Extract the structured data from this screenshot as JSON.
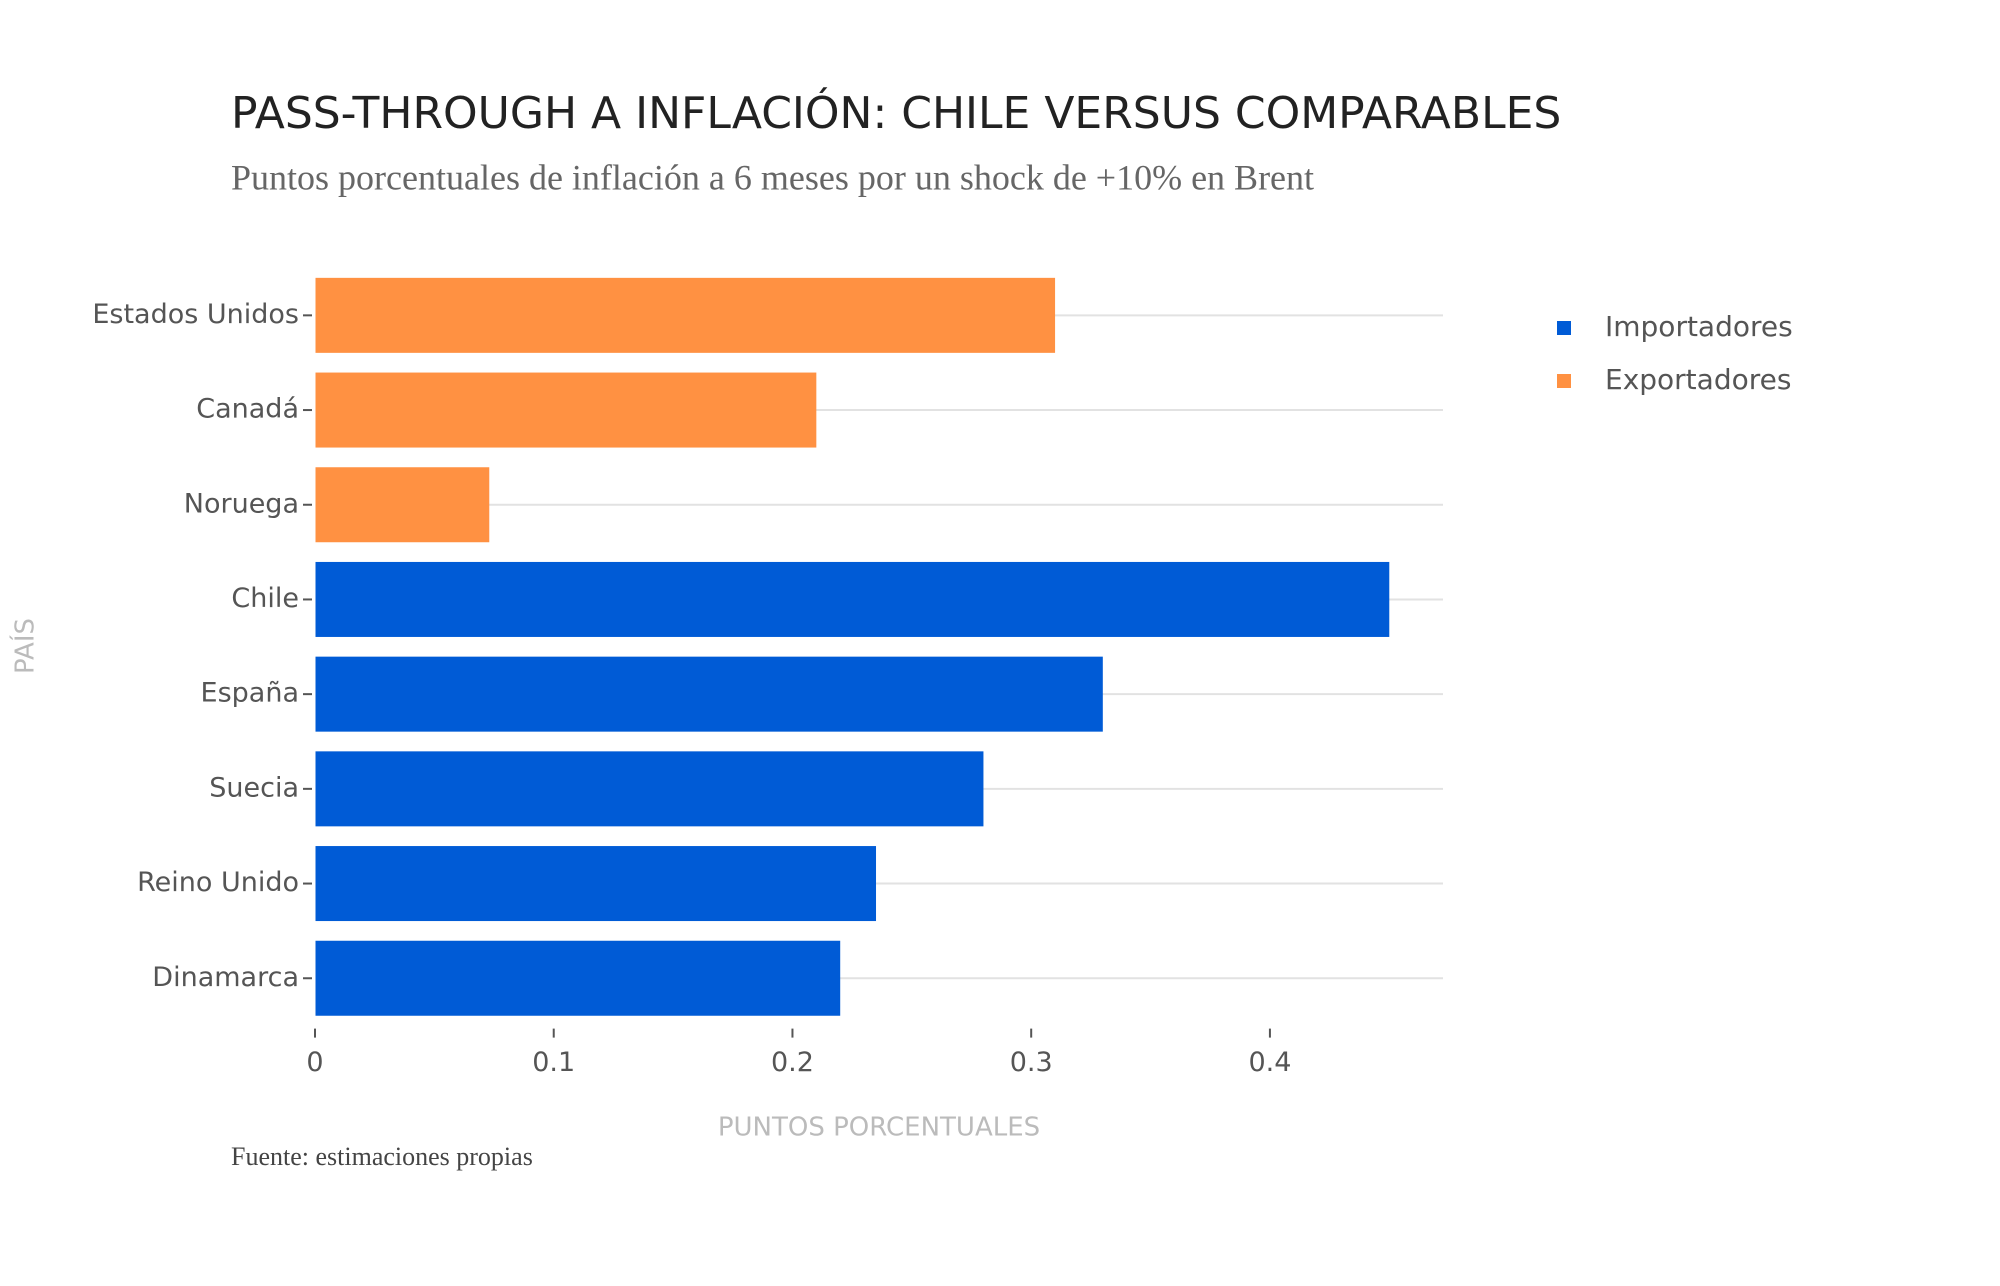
{
  "chart_data": {
    "type": "bar",
    "orientation": "horizontal",
    "title": "PASS-THROUGH A INFLACIÓN: CHILE VERSUS COMPARABLES",
    "subtitle": "Puntos porcentuales de inflación a 6 meses por un shock de +10% en Brent",
    "source": "Fuente: estimaciones propias",
    "x_label": "PUNTOS PORCENTUALES",
    "y_label": "PAÍS",
    "categories": [
      "Estados Unidos",
      "Canadá",
      "Noruega",
      "Chile",
      "España",
      "Suecia",
      "Reino Unido",
      "Dinamarca"
    ],
    "series": [
      {
        "name": "Importadores",
        "color": "#005bd6",
        "values": [
          null,
          null,
          null,
          0.45,
          0.33,
          0.28,
          0.235,
          0.22
        ]
      },
      {
        "name": "Exportadores",
        "color": "#ff9142",
        "values": [
          0.31,
          0.21,
          0.073,
          null,
          null,
          null,
          null,
          null
        ]
      }
    ],
    "xlim": [
      0,
      0.4725
    ],
    "xticks": [
      0,
      0.1,
      0.2,
      0.3,
      0.4
    ],
    "grid": true,
    "legend": "right"
  }
}
